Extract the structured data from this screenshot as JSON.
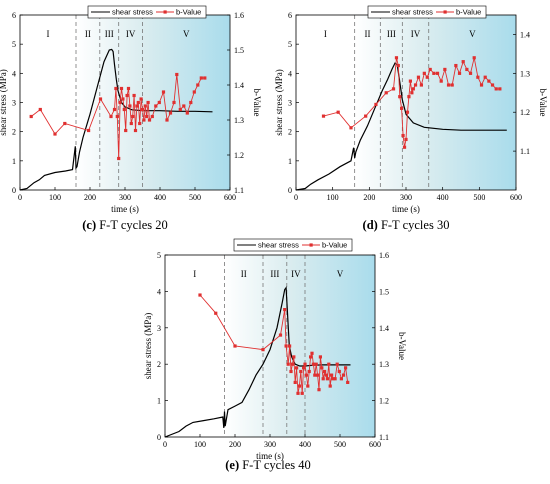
{
  "chart_data": [
    {
      "type": "line",
      "caption_letter": "(c)",
      "caption_text": "F-T cycles 20",
      "xlabel": "time (s)",
      "ylabel_left": "shear stress (MPa)",
      "ylabel_right": "b-Value",
      "xlim": [
        0,
        600
      ],
      "ylim_left": [
        0,
        6
      ],
      "ylim_right": [
        1.1,
        1.6
      ],
      "xticks": [
        0,
        100,
        200,
        300,
        400,
        500,
        600
      ],
      "yticks_left": [
        0,
        1,
        2,
        3,
        4,
        5,
        6
      ],
      "yticks_right": [
        1.1,
        1.2,
        1.3,
        1.4,
        1.5,
        1.6
      ],
      "stage_bounds": [
        160,
        228,
        282,
        350
      ],
      "stage_labels": [
        "I",
        "II",
        "III",
        "IV",
        "V"
      ],
      "legend": [
        "shear stress",
        "b-Value"
      ],
      "series": [
        {
          "name": "shear stress",
          "axis": "left",
          "color": "#000000",
          "x": [
            0,
            20,
            40,
            55,
            70,
            100,
            130,
            150,
            158,
            160,
            163,
            170,
            180,
            200,
            220,
            240,
            255,
            262,
            266,
            270,
            275,
            280,
            290,
            300,
            320,
            350,
            400,
            450,
            500,
            550
          ],
          "y": [
            0,
            0.05,
            0.25,
            0.35,
            0.5,
            0.6,
            0.65,
            0.7,
            1.5,
            0.75,
            0.8,
            1.3,
            1.8,
            2.6,
            3.5,
            4.4,
            4.8,
            4.82,
            4.75,
            4.3,
            3.8,
            3.4,
            3.0,
            2.85,
            2.75,
            2.72,
            2.72,
            2.7,
            2.7,
            2.68
          ]
        },
        {
          "name": "b-Value",
          "axis": "right",
          "color": "#e03030",
          "x": [
            32,
            58,
            100,
            128,
            196,
            230,
            260,
            270,
            274,
            278,
            282,
            286,
            290,
            294,
            298,
            302,
            306,
            310,
            314,
            318,
            322,
            326,
            330,
            334,
            338,
            342,
            346,
            350,
            354,
            358,
            362,
            366,
            370,
            378,
            388,
            398,
            410,
            420,
            430,
            440,
            448,
            458,
            468,
            478,
            488,
            498,
            508,
            518,
            528
          ],
          "y": [
            1.31,
            1.33,
            1.26,
            1.29,
            1.27,
            1.36,
            1.31,
            1.33,
            1.39,
            1.31,
            1.19,
            1.35,
            1.39,
            1.36,
            1.33,
            1.27,
            1.37,
            1.39,
            1.34,
            1.29,
            1.31,
            1.37,
            1.27,
            1.34,
            1.35,
            1.29,
            1.36,
            1.33,
            1.3,
            1.34,
            1.31,
            1.35,
            1.3,
            1.31,
            1.34,
            1.35,
            1.38,
            1.3,
            1.32,
            1.35,
            1.43,
            1.33,
            1.34,
            1.32,
            1.35,
            1.38,
            1.4,
            1.42,
            1.42
          ]
        }
      ]
    },
    {
      "type": "line",
      "caption_letter": "(d)",
      "caption_text": "F-T cycles 30",
      "xlabel": "time (s)",
      "ylabel_left": "shear stress (MPa)",
      "ylabel_right": "b-Value",
      "xlim": [
        0,
        600
      ],
      "ylim_left": [
        0,
        6
      ],
      "ylim_right": [
        1.0,
        1.45
      ],
      "xticks": [
        0,
        100,
        200,
        300,
        400,
        500,
        600
      ],
      "yticks_left": [
        0,
        1,
        2,
        3,
        4,
        5,
        6
      ],
      "yticks_right": [
        1.1,
        1.2,
        1.3,
        1.4
      ],
      "stage_bounds": [
        160,
        230,
        290,
        362
      ],
      "stage_labels": [
        "I",
        "II",
        "III",
        "IV",
        "V"
      ],
      "legend": [
        "shear stress",
        "b-Value"
      ],
      "series": [
        {
          "name": "shear stress",
          "axis": "left",
          "color": "#000000",
          "x": [
            0,
            25,
            40,
            60,
            90,
            120,
            150,
            157,
            160,
            163,
            175,
            195,
            215,
            235,
            250,
            262,
            270,
            276,
            283,
            290,
            300,
            320,
            350,
            400,
            450,
            500,
            550,
            575
          ],
          "y": [
            0,
            0.05,
            0.2,
            0.35,
            0.55,
            0.8,
            1.0,
            1.45,
            1.1,
            1.3,
            1.7,
            2.2,
            2.8,
            3.4,
            3.8,
            4.15,
            4.35,
            4.3,
            3.7,
            3.1,
            2.6,
            2.3,
            2.15,
            2.08,
            2.05,
            2.05,
            2.05,
            2.05
          ]
        },
        {
          "name": "b-Value",
          "axis": "right",
          "color": "#e03030",
          "x": [
            75,
            115,
            150,
            190,
            218,
            246,
            266,
            274,
            279,
            283,
            288,
            292,
            296,
            300,
            304,
            308,
            312,
            316,
            320,
            326,
            334,
            342,
            350,
            358,
            366,
            376,
            386,
            396,
            406,
            416,
            426,
            436,
            446,
            456,
            466,
            476,
            486,
            496,
            506,
            516,
            526,
            536,
            546,
            556
          ],
          "y": [
            1.19,
            1.2,
            1.16,
            1.19,
            1.22,
            1.25,
            1.26,
            1.34,
            1.32,
            1.24,
            1.21,
            1.14,
            1.11,
            1.13,
            1.2,
            1.24,
            1.28,
            1.25,
            1.26,
            1.27,
            1.29,
            1.27,
            1.3,
            1.29,
            1.31,
            1.3,
            1.3,
            1.28,
            1.31,
            1.27,
            1.27,
            1.32,
            1.3,
            1.33,
            1.31,
            1.3,
            1.34,
            1.29,
            1.27,
            1.29,
            1.28,
            1.27,
            1.26,
            1.26
          ]
        }
      ]
    },
    {
      "type": "line",
      "caption_letter": "(e)",
      "caption_text": "F-T cycles 40",
      "xlabel": "time (s)",
      "ylabel_left": "shear stress (MPa)",
      "ylabel_right": "b-Value",
      "xlim": [
        0,
        600
      ],
      "ylim_left": [
        0,
        5
      ],
      "ylim_right": [
        1.1,
        1.6
      ],
      "xticks": [
        0,
        100,
        200,
        300,
        400,
        500,
        600
      ],
      "yticks_left": [
        0,
        1,
        2,
        3,
        4,
        5
      ],
      "yticks_right": [
        1.1,
        1.2,
        1.3,
        1.4,
        1.5,
        1.6
      ],
      "stage_bounds": [
        170,
        280,
        348,
        400
      ],
      "stage_labels": [
        "I",
        "II",
        "III",
        "IV",
        "V"
      ],
      "legend": [
        "shear stress",
        "b-Value"
      ],
      "series": [
        {
          "name": "shear stress",
          "axis": "left",
          "color": "#000000",
          "x": [
            0,
            40,
            60,
            80,
            110,
            140,
            165,
            168,
            170,
            172,
            180,
            200,
            220,
            240,
            260,
            280,
            300,
            320,
            335,
            342,
            346,
            350,
            355,
            362,
            372,
            385,
            400,
            420,
            450,
            500,
            530
          ],
          "y": [
            0,
            0.15,
            0.3,
            0.4,
            0.45,
            0.5,
            0.55,
            0.25,
            0.7,
            0.3,
            0.75,
            0.85,
            0.95,
            1.3,
            1.7,
            2.0,
            2.4,
            3.0,
            3.7,
            4.05,
            4.1,
            3.4,
            2.5,
            2.2,
            2.0,
            1.95,
            1.95,
            1.97,
            1.98,
            1.98,
            1.98
          ]
        },
        {
          "name": "b-Value",
          "axis": "right",
          "color": "#e03030",
          "x": [
            100,
            145,
            200,
            280,
            330,
            342,
            346,
            352,
            356,
            360,
            364,
            368,
            372,
            376,
            380,
            384,
            388,
            392,
            396,
            400,
            404,
            408,
            412,
            416,
            420,
            424,
            428,
            432,
            436,
            440,
            444,
            448,
            452,
            456,
            460,
            464,
            468,
            472,
            476,
            480,
            486,
            492,
            498,
            504,
            510,
            516,
            522
          ],
          "y": [
            1.49,
            1.44,
            1.35,
            1.34,
            1.38,
            1.45,
            1.35,
            1.3,
            1.35,
            1.28,
            1.3,
            1.32,
            1.25,
            1.29,
            1.22,
            1.24,
            1.28,
            1.22,
            1.29,
            1.3,
            1.27,
            1.24,
            1.28,
            1.32,
            1.33,
            1.3,
            1.27,
            1.3,
            1.27,
            1.23,
            1.32,
            1.29,
            1.26,
            1.28,
            1.27,
            1.26,
            1.3,
            1.24,
            1.27,
            1.26,
            1.26,
            1.3,
            1.28,
            1.26,
            1.27,
            1.29,
            1.25
          ]
        }
      ]
    }
  ]
}
